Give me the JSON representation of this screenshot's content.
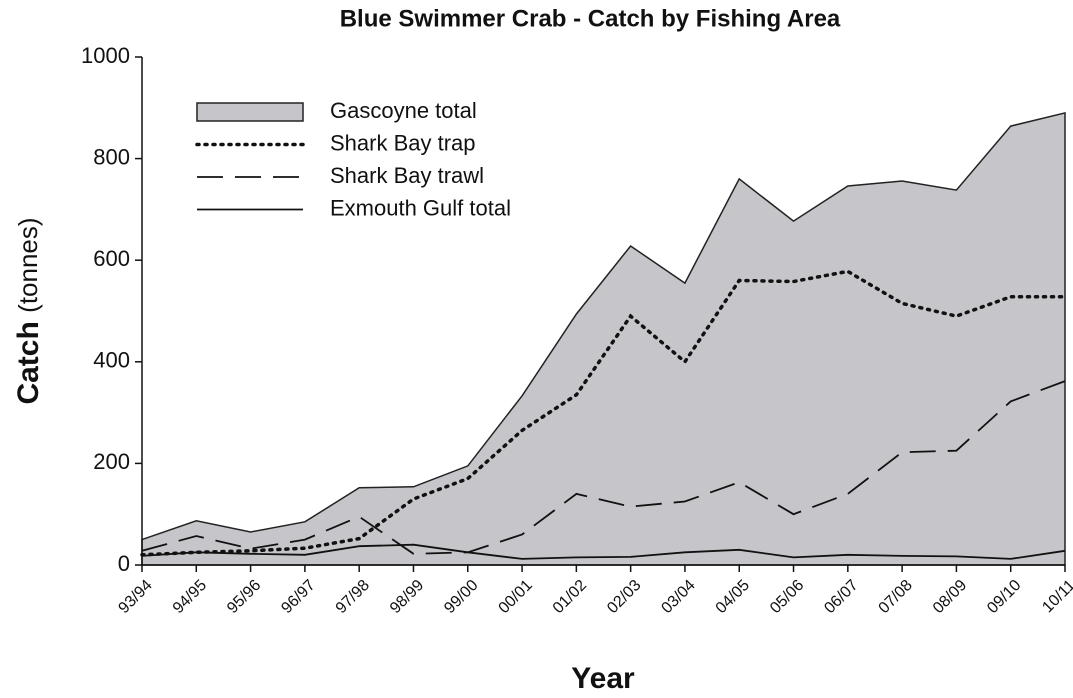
{
  "chart_data": {
    "type": "area-line",
    "title": "Blue Swimmer Crab - Catch by Fishing Area",
    "xlabel": "Year",
    "ylabel": "Catch",
    "ylabel_unit": "(tonnes)",
    "categories": [
      "93/94",
      "94/95",
      "95/96",
      "96/97",
      "97/98",
      "98/99",
      "99/00",
      "00/01",
      "01/02",
      "02/03",
      "03/04",
      "04/05",
      "05/06",
      "06/07",
      "07/08",
      "08/09",
      "09/10",
      "10/11"
    ],
    "ylim": [
      0,
      1000
    ],
    "yticks": [
      0,
      200,
      400,
      600,
      800,
      1000
    ],
    "grid": false,
    "legend": "upper left",
    "series": [
      {
        "name": "Gascoyne total",
        "style": "area",
        "color": "#c6c6ca",
        "values": [
          50,
          87,
          65,
          85,
          152,
          154,
          195,
          333,
          494,
          628,
          555,
          760,
          677,
          746,
          756,
          738,
          864,
          890
        ]
      },
      {
        "name": "Shark Bay trap",
        "style": "dotted",
        "color": "#111111",
        "values": [
          20,
          25,
          28,
          33,
          52,
          130,
          170,
          265,
          335,
          490,
          400,
          560,
          558,
          578,
          515,
          490,
          528,
          528
        ]
      },
      {
        "name": "Shark Bay trawl",
        "style": "dashed",
        "color": "#111111",
        "values": [
          28,
          57,
          32,
          50,
          95,
          22,
          25,
          60,
          140,
          115,
          125,
          163,
          100,
          140,
          222,
          225,
          322,
          362
        ]
      },
      {
        "name": "Exmouth Gulf total",
        "style": "solid",
        "color": "#111111",
        "values": [
          18,
          25,
          22,
          20,
          37,
          40,
          25,
          12,
          15,
          16,
          25,
          30,
          15,
          20,
          18,
          17,
          12,
          28
        ]
      }
    ]
  }
}
